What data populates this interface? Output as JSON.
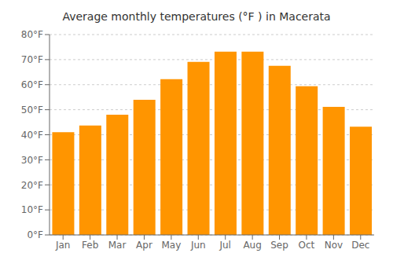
{
  "chart_data": {
    "type": "bar",
    "title": "Average monthly temperatures (°F ) in Macerata",
    "categories": [
      "Jan",
      "Feb",
      "Mar",
      "Apr",
      "May",
      "Jun",
      "Jul",
      "Aug",
      "Sep",
      "Oct",
      "Nov",
      "Dec"
    ],
    "values": [
      41.0,
      43.7,
      48.0,
      54.0,
      62.2,
      69.1,
      73.2,
      73.2,
      67.5,
      59.4,
      51.1,
      43.2
    ],
    "color": "#FF9500",
    "ylim": [
      0,
      80
    ],
    "yticks": [
      {
        "value": 0,
        "label": "0°F"
      },
      {
        "value": 10,
        "label": "10°F"
      },
      {
        "value": 20,
        "label": "20°F"
      },
      {
        "value": 30,
        "label": "30°F"
      },
      {
        "value": 40,
        "label": "40°F"
      },
      {
        "value": 50,
        "label": "50°F"
      },
      {
        "value": 60,
        "label": "60°F"
      },
      {
        "value": 70,
        "label": "70°F"
      },
      {
        "value": 80,
        "label": "80°F"
      }
    ],
    "grid": true
  }
}
